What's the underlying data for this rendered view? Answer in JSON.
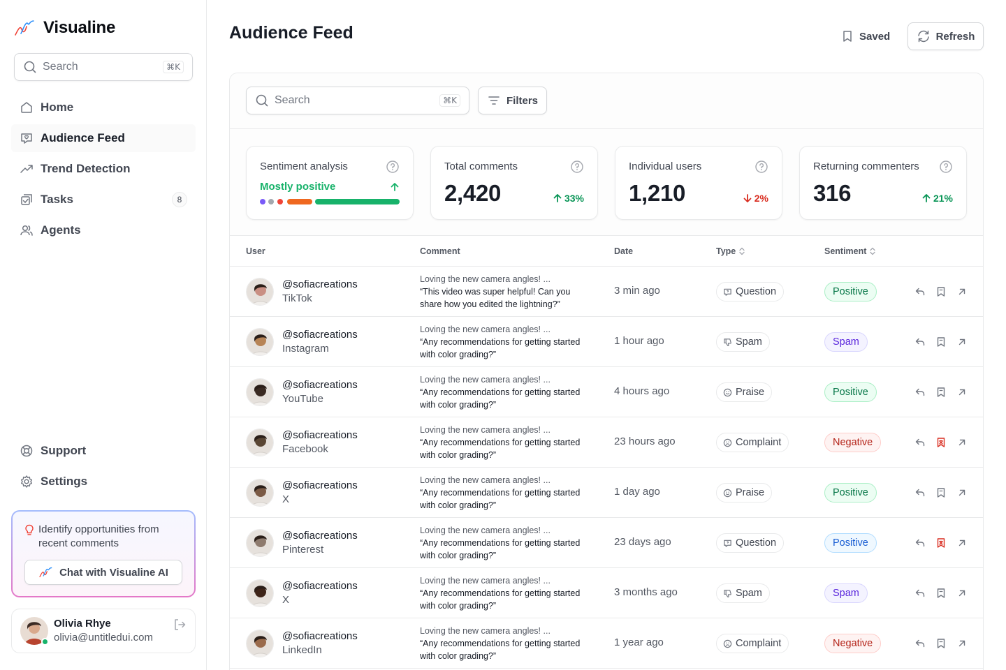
{
  "brand": {
    "name": "Visualine"
  },
  "sidebar": {
    "search": {
      "placeholder": "Search",
      "shortcut": "⌘K"
    },
    "nav": [
      {
        "label": "Home",
        "icon": "home-icon"
      },
      {
        "label": "Audience Feed",
        "icon": "message-icon",
        "active": true
      },
      {
        "label": "Trend Detection",
        "icon": "trend-icon"
      },
      {
        "label": "Tasks",
        "icon": "tasks-icon",
        "badge": "8"
      },
      {
        "label": "Agents",
        "icon": "users-icon"
      }
    ],
    "bottom_nav": [
      {
        "label": "Support",
        "icon": "lifebuoy-icon"
      },
      {
        "label": "Settings",
        "icon": "gear-icon"
      }
    ],
    "promo": {
      "text": "Identify opportunities from recent comments",
      "button": "Chat with Visualine AI"
    },
    "user": {
      "name": "Olivia Rhye",
      "email": "olivia@untitledui.com"
    }
  },
  "header": {
    "title": "Audience Feed",
    "saved_label": "Saved",
    "refresh_label": "Refresh"
  },
  "toolbar": {
    "search_placeholder": "Search",
    "shortcut": "⌘K",
    "filters_label": "Filters"
  },
  "stats": {
    "sentiment": {
      "label": "Sentiment analysis",
      "value": "Mostly positive"
    },
    "total_comments": {
      "label": "Total comments",
      "value": "2,420",
      "change": "33%",
      "direction": "up"
    },
    "individual_users": {
      "label": "Individual users",
      "value": "1,210",
      "change": "2%",
      "direction": "down"
    },
    "returning": {
      "label": "Returning commenters",
      "value": "316",
      "change": "21%",
      "direction": "up"
    }
  },
  "table": {
    "headers": {
      "user": "User",
      "comment": "Comment",
      "date": "Date",
      "type": "Type",
      "sentiment": "Sentiment"
    },
    "rows": [
      {
        "handle": "@sofiacreations",
        "platform": "TikTok",
        "lead": "Loving the new camera angles! ...",
        "comment": "“This video was super helpful! Can you share how you edited the lightning?”",
        "date": "3 min ago",
        "type": "Question",
        "sentiment": "Positive",
        "sent_style": "positive",
        "saved": false,
        "avatar": "#c98f83"
      },
      {
        "handle": "@sofiacreations",
        "platform": "Instagram",
        "lead": "Loving the new camera angles! ...",
        "comment": "“Any recommendations for getting started with color grading?”",
        "date": "1 hour ago",
        "type": "Spam",
        "sentiment": "Spam",
        "sent_style": "spam",
        "saved": false,
        "avatar": "#b78456"
      },
      {
        "handle": "@sofiacreations",
        "platform": "YouTube",
        "lead": "Loving the new camera angles! ...",
        "comment": "“Any recommendations for getting started with color grading?”",
        "date": "4 hours ago",
        "type": "Praise",
        "sentiment": "Positive",
        "sent_style": "positive",
        "saved": false,
        "avatar": "#3a2a22"
      },
      {
        "handle": "@sofiacreations",
        "platform": "Facebook",
        "lead": "Loving the new camera angles! ...",
        "comment": "“Any recommendations for getting started with color grading?”",
        "date": "23 hours ago",
        "type": "Complaint",
        "sentiment": "Negative",
        "sent_style": "negative",
        "saved": true,
        "avatar": "#5a4634"
      },
      {
        "handle": "@sofiacreations",
        "platform": "X",
        "lead": "Loving the new camera angles! ...",
        "comment": "“Any recommendations for getting started with color grading?”",
        "date": "1 day ago",
        "type": "Praise",
        "sentiment": "Positive",
        "sent_style": "positive",
        "saved": false,
        "avatar": "#7b5a45"
      },
      {
        "handle": "@sofiacreations",
        "platform": "Pinterest",
        "lead": "Loving the new camera angles! ...",
        "comment": "“Any recommendations for getting started with color grading?”",
        "date": "23 days ago",
        "type": "Question",
        "sentiment": "Positive",
        "sent_style": "positive-blue",
        "saved": true,
        "avatar": "#8e7b6e"
      },
      {
        "handle": "@sofiacreations",
        "platform": "X",
        "lead": "Loving the new camera angles! ...",
        "comment": "“Any recommendations for getting started with color grading?”",
        "date": "3 months ago",
        "type": "Spam",
        "sentiment": "Spam",
        "sent_style": "spam",
        "saved": false,
        "avatar": "#3e2418"
      },
      {
        "handle": "@sofiacreations",
        "platform": "LinkedIn",
        "lead": "Loving the new camera angles! ...",
        "comment": "“Any recommendations for getting started with color grading?”",
        "date": "1 year ago",
        "type": "Complaint",
        "sentiment": "Negative",
        "sent_style": "negative",
        "saved": false,
        "avatar": "#9a6b4c"
      }
    ]
  },
  "colors": {
    "accent_green": "#17b26a",
    "negative": "#d92d20",
    "saved_active": "#d92d20"
  }
}
